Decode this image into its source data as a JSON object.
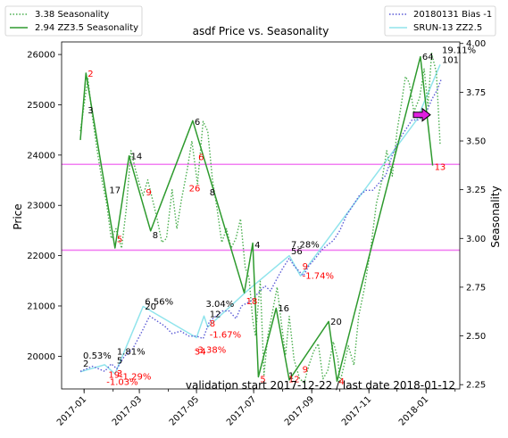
{
  "chart_data": {
    "type": "line",
    "title": "asdf Price vs. Seasonality",
    "xlabel": "",
    "ylabel": "Price",
    "y2label": "Seasonality",
    "ylim": [
      19350,
      26250
    ],
    "y2lim": [
      2.228,
      4.008
    ],
    "xlim": [
      "2016-12-08",
      "2018-02-06"
    ],
    "x_ticks": [
      {
        "date": "2017-01-01",
        "label": "2017-01"
      },
      {
        "date": "2017-03-01",
        "label": "2017-03"
      },
      {
        "date": "2017-05-01",
        "label": "2017-05"
      },
      {
        "date": "2017-07-01",
        "label": "2017-07"
      },
      {
        "date": "2017-09-01",
        "label": "2017-09"
      },
      {
        "date": "2017-11-01",
        "label": "2017-11"
      },
      {
        "date": "2018-01-01",
        "label": "2018-01"
      }
    ],
    "y_ticks": [
      {
        "value": 20000,
        "label": "20000"
      },
      {
        "value": 21000,
        "label": "21000"
      },
      {
        "value": 22000,
        "label": "22000"
      },
      {
        "value": 23000,
        "label": "23000"
      },
      {
        "value": 24000,
        "label": "24000"
      },
      {
        "value": 25000,
        "label": "25000"
      },
      {
        "value": 26000,
        "label": "26000"
      }
    ],
    "y2_ticks": [
      {
        "value": 2.25,
        "label": "2.25"
      },
      {
        "value": 2.5,
        "label": "2.50"
      },
      {
        "value": 2.75,
        "label": "2.75"
      },
      {
        "value": 3.0,
        "label": "3.00"
      },
      {
        "value": 3.25,
        "label": "3.25"
      },
      {
        "value": 3.5,
        "label": "3.50"
      },
      {
        "value": 3.75,
        "label": "3.75"
      },
      {
        "value": 4.0,
        "label": "4.00"
      }
    ],
    "legend_left": {
      "placement": "top-left",
      "entries": [
        {
          "label": "3.38 Seasonality",
          "color": "#4caf50",
          "style": "dotted"
        },
        {
          "label": "2.94 ZZ3.5 Seasonality",
          "color": "#2e9a2e",
          "style": "solid"
        }
      ]
    },
    "legend_right": {
      "placement": "top-right",
      "entries": [
        {
          "label": "20180131 Bias -1",
          "color": "#5b5bd6",
          "style": "dotted"
        },
        {
          "label": "SRUN-13 ZZ2.5",
          "color": "#90e4ec",
          "style": "solid"
        }
      ]
    },
    "hlines": [
      {
        "axis": "y2",
        "value": 3.38,
        "color": "#f27ff2"
      },
      {
        "axis": "y2",
        "value": 2.94,
        "color": "#f27ff2"
      }
    ],
    "series": [
      {
        "name": "3.38 Seasonality",
        "axis": "y2",
        "color": "#4caf50",
        "style": "dotted",
        "x": [
          "2016-12-28",
          "2017-01-05",
          "2017-01-10",
          "2017-01-15",
          "2017-01-20",
          "2017-01-25",
          "2017-01-30",
          "2017-02-04",
          "2017-02-10",
          "2017-02-15",
          "2017-02-20",
          "2017-02-25",
          "2017-03-01",
          "2017-03-05",
          "2017-03-10",
          "2017-03-15",
          "2017-03-20",
          "2017-03-25",
          "2017-03-30",
          "2017-04-05",
          "2017-04-10",
          "2017-04-15",
          "2017-04-21",
          "2017-04-26",
          "2017-05-02",
          "2017-05-08",
          "2017-05-13",
          "2017-05-18",
          "2017-05-23",
          "2017-05-28",
          "2017-06-02",
          "2017-06-07",
          "2017-06-12",
          "2017-06-17",
          "2017-06-22",
          "2017-06-26",
          "2017-06-30",
          "2017-07-03",
          "2017-07-08",
          "2017-07-12",
          "2017-07-16",
          "2017-07-21",
          "2017-07-26",
          "2017-07-31",
          "2017-08-04",
          "2017-08-08",
          "2017-08-13",
          "2017-08-19",
          "2017-08-24",
          "2017-08-29",
          "2017-09-03",
          "2017-09-08",
          "2017-09-13",
          "2017-09-18",
          "2017-09-24",
          "2017-09-29",
          "2017-10-01",
          "2017-10-05",
          "2017-10-10",
          "2017-10-16",
          "2017-10-21",
          "2017-10-27",
          "2017-11-03",
          "2017-11-09",
          "2017-11-15",
          "2017-11-20",
          "2017-11-26",
          "2017-12-01",
          "2017-12-06",
          "2017-12-10",
          "2017-12-14",
          "2017-12-19",
          "2017-12-25",
          "2017-12-30",
          "2018-01-03",
          "2018-01-07",
          "2018-01-12",
          "2018-01-16"
        ],
        "values": [
          3.55,
          3.82,
          3.62,
          3.45,
          3.3,
          3.18,
          3.0,
          3.05,
          2.95,
          3.15,
          3.45,
          3.35,
          3.28,
          3.22,
          3.3,
          3.2,
          3.1,
          2.98,
          3.0,
          3.25,
          3.05,
          3.2,
          3.35,
          3.5,
          3.28,
          3.6,
          3.55,
          3.3,
          3.15,
          2.98,
          3.05,
          2.95,
          3.0,
          3.1,
          2.85,
          2.8,
          2.58,
          2.5,
          2.78,
          2.3,
          2.5,
          2.62,
          2.75,
          2.55,
          2.4,
          2.6,
          2.38,
          2.28,
          2.26,
          2.35,
          2.42,
          2.46,
          2.28,
          2.32,
          2.47,
          2.38,
          2.26,
          2.34,
          2.45,
          2.35,
          2.6,
          2.74,
          2.95,
          3.18,
          3.3,
          3.45,
          3.32,
          3.55,
          3.7,
          3.83,
          3.8,
          3.65,
          3.72,
          3.87,
          3.68,
          3.95,
          3.85,
          3.48
        ]
      },
      {
        "name": "2.94 ZZ3.5 Seasonality",
        "axis": "y2",
        "color": "#2e9a2e",
        "style": "solid",
        "x": [
          "2016-12-28",
          "2017-01-03",
          "2017-02-03",
          "2017-02-18",
          "2017-03-13",
          "2017-04-27",
          "2017-06-21",
          "2017-06-30",
          "2017-07-06",
          "2017-07-25",
          "2017-08-08",
          "2017-09-19",
          "2017-09-28",
          "2017-12-26",
          "2018-01-08"
        ],
        "values": [
          3.505,
          3.848,
          2.951,
          3.423,
          3.039,
          3.604,
          2.721,
          2.976,
          2.29,
          2.642,
          2.274,
          2.574,
          2.268,
          3.932,
          3.374
        ]
      },
      {
        "name": "20180131 Bias -1",
        "axis": "y",
        "color": "#5b5bd6",
        "style": "dotted",
        "x": [
          "2016-12-28",
          "2017-01-10",
          "2017-01-23",
          "2017-01-30",
          "2017-02-05",
          "2017-02-13",
          "2017-02-22",
          "2017-03-04",
          "2017-03-12",
          "2017-03-20",
          "2017-03-28",
          "2017-04-05",
          "2017-04-14",
          "2017-04-23",
          "2017-05-01",
          "2017-05-08",
          "2017-05-15",
          "2017-05-22",
          "2017-05-29",
          "2017-06-05",
          "2017-06-12",
          "2017-06-18",
          "2017-06-23",
          "2017-06-28",
          "2017-07-03",
          "2017-07-08",
          "2017-07-13",
          "2017-07-19",
          "2017-07-26",
          "2017-08-01",
          "2017-08-08",
          "2017-08-13",
          "2017-08-18",
          "2017-08-23",
          "2017-08-29",
          "2017-09-05",
          "2017-09-11",
          "2017-09-17",
          "2017-09-24",
          "2017-10-01",
          "2017-10-08",
          "2017-10-15",
          "2017-10-22",
          "2017-10-29",
          "2017-11-05",
          "2017-11-12",
          "2017-11-19",
          "2017-11-26",
          "2017-12-03",
          "2017-12-10",
          "2017-12-17",
          "2017-12-24",
          "2017-12-31",
          "2018-01-07",
          "2018-01-13",
          "2018-01-17"
        ],
        "values": [
          19700,
          19800,
          19700,
          19850,
          19750,
          20000,
          20150,
          20500,
          20800,
          20700,
          20600,
          20450,
          20500,
          20400,
          20400,
          20350,
          20700,
          20800,
          20900,
          20900,
          20750,
          21000,
          21050,
          21100,
          21200,
          21300,
          21400,
          21300,
          21550,
          21750,
          21950,
          21800,
          21700,
          21600,
          21800,
          21950,
          22100,
          22200,
          22300,
          22500,
          22800,
          23000,
          23200,
          23300,
          23300,
          23450,
          23600,
          24000,
          24300,
          24500,
          24700,
          24700,
          24800,
          25100,
          25300,
          25500
        ]
      },
      {
        "name": "SRUN-13 ZZ2.5",
        "axis": "y",
        "color": "#90e4ec",
        "style": "solid",
        "x": [
          "2016-12-28",
          "2017-01-23",
          "2017-02-03",
          "2017-03-05",
          "2017-05-01",
          "2017-05-09",
          "2017-05-13",
          "2017-06-24",
          "2017-08-08",
          "2017-08-20",
          "2017-12-22",
          "2018-01-16"
        ],
        "values": [
          19690,
          19830,
          19650,
          20990,
          20370,
          20800,
          20580,
          21300,
          22000,
          21600,
          24700,
          25800
        ]
      }
    ],
    "point_labels": [
      {
        "date": "2017-01-03",
        "seasonality": 3.848,
        "text": "2",
        "color": "#ff0000"
      },
      {
        "date": "2017-01-03",
        "seasonality": 3.66,
        "text": "3",
        "color": "#000000"
      },
      {
        "date": "2017-01-26",
        "seasonality": 3.25,
        "text": "17",
        "color": "#000000"
      },
      {
        "date": "2017-02-03",
        "seasonality": 3.0,
        "text": "5",
        "color": "#ff0000"
      },
      {
        "date": "2017-02-18",
        "seasonality": 3.425,
        "text": "14",
        "color": "#000000"
      },
      {
        "date": "2017-03-06",
        "seasonality": 3.24,
        "text": "9",
        "color": "#ff0000"
      },
      {
        "date": "2017-03-13",
        "seasonality": 3.02,
        "text": "8",
        "color": "#000000"
      },
      {
        "date": "2017-04-27",
        "seasonality": 3.6,
        "text": "6",
        "color": "#000000"
      },
      {
        "date": "2017-05-01",
        "seasonality": 3.42,
        "text": "6",
        "color": "#ff0000"
      },
      {
        "date": "2017-04-21",
        "seasonality": 3.26,
        "text": "26",
        "color": "#ff0000"
      },
      {
        "date": "2017-05-13",
        "seasonality": 3.24,
        "text": "8",
        "color": "#000000"
      },
      {
        "date": "2017-06-30",
        "seasonality": 2.97,
        "text": "4",
        "color": "#000000"
      },
      {
        "date": "2017-06-21",
        "seasonality": 2.68,
        "text": "18",
        "color": "#ff0000"
      },
      {
        "date": "2017-07-06",
        "seasonality": 2.28,
        "text": "5",
        "color": "#ff0000"
      },
      {
        "date": "2017-07-25",
        "seasonality": 2.645,
        "text": "16",
        "color": "#000000"
      },
      {
        "date": "2017-08-05",
        "seasonality": 2.3,
        "text": "1",
        "color": "#000000"
      },
      {
        "date": "2017-08-05",
        "seasonality": 2.28,
        "text": "12",
        "color": "#ff0000"
      },
      {
        "date": "2017-08-20",
        "seasonality": 2.33,
        "text": "9",
        "color": "#ff0000"
      },
      {
        "date": "2017-09-19",
        "seasonality": 2.575,
        "text": "20",
        "color": "#000000"
      },
      {
        "date": "2017-09-28",
        "seasonality": 2.27,
        "text": "4",
        "color": "#ff0000"
      },
      {
        "date": "2017-12-26",
        "seasonality": 3.935,
        "text": "64",
        "color": "#000000"
      },
      {
        "date": "2018-01-08",
        "seasonality": 3.37,
        "text": "13",
        "color": "#ff0000"
      }
    ],
    "price_labels": [
      {
        "date": "2016-12-29",
        "price": 19860,
        "text": "2",
        "color": "#000000"
      },
      {
        "date": "2017-01-25",
        "price": 19640,
        "text": "19",
        "color": "#ff0000"
      },
      {
        "date": "2017-02-03",
        "price": 19930,
        "text": "5",
        "color": "#000000"
      },
      {
        "date": "2017-02-03",
        "price": 19670,
        "text": "3",
        "color": "#ff0000"
      },
      {
        "date": "2017-03-05",
        "price": 21000,
        "text": "20",
        "color": "#000000"
      },
      {
        "date": "2017-04-27",
        "price": 20100,
        "text": "34",
        "color": "#ff0000"
      },
      {
        "date": "2017-05-13",
        "price": 20850,
        "text": "12",
        "color": "#000000"
      },
      {
        "date": "2017-05-13",
        "price": 20660,
        "text": "8",
        "color": "#ff0000"
      },
      {
        "date": "2017-08-08",
        "price": 22100,
        "text": "56",
        "color": "#000000"
      },
      {
        "date": "2017-08-20",
        "price": 21800,
        "text": "9",
        "color": "#ff0000"
      },
      {
        "date": "2018-01-16",
        "price": 25900,
        "text": "101",
        "color": "#000000"
      }
    ],
    "pct_labels": [
      {
        "date": "2016-12-29",
        "price": 20020,
        "text": "0.53%",
        "color": "#000000"
      },
      {
        "date": "2017-01-23",
        "price": 19500,
        "text": "-1.03%",
        "color": "#ff0000"
      },
      {
        "date": "2017-02-03",
        "price": 20100,
        "text": "1.81%",
        "color": "#000000"
      },
      {
        "date": "2017-02-06",
        "price": 19610,
        "text": "-1.29%",
        "color": "#ff0000"
      },
      {
        "date": "2017-03-05",
        "price": 21100,
        "text": "6.56%",
        "color": "#000000"
      },
      {
        "date": "2017-04-27",
        "price": 20140,
        "text": "-3.38%",
        "color": "#ff0000"
      },
      {
        "date": "2017-05-09",
        "price": 21050,
        "text": "3.04%",
        "color": "#000000"
      },
      {
        "date": "2017-05-13",
        "price": 20440,
        "text": "-1.67%",
        "color": "#ff0000"
      },
      {
        "date": "2017-08-08",
        "price": 22230,
        "text": "7.28%",
        "color": "#000000"
      },
      {
        "date": "2017-08-20",
        "price": 21610,
        "text": "-1.74%",
        "color": "#ff0000"
      },
      {
        "date": "2018-01-16",
        "price": 26100,
        "text": "19.11%",
        "color": "#000000"
      }
    ],
    "marker": {
      "date": "2017-12-27",
      "price": 24800,
      "color": "#e020e0"
    },
    "annotation": "validation start  2017-12-22 / last date 2018-01-12"
  }
}
